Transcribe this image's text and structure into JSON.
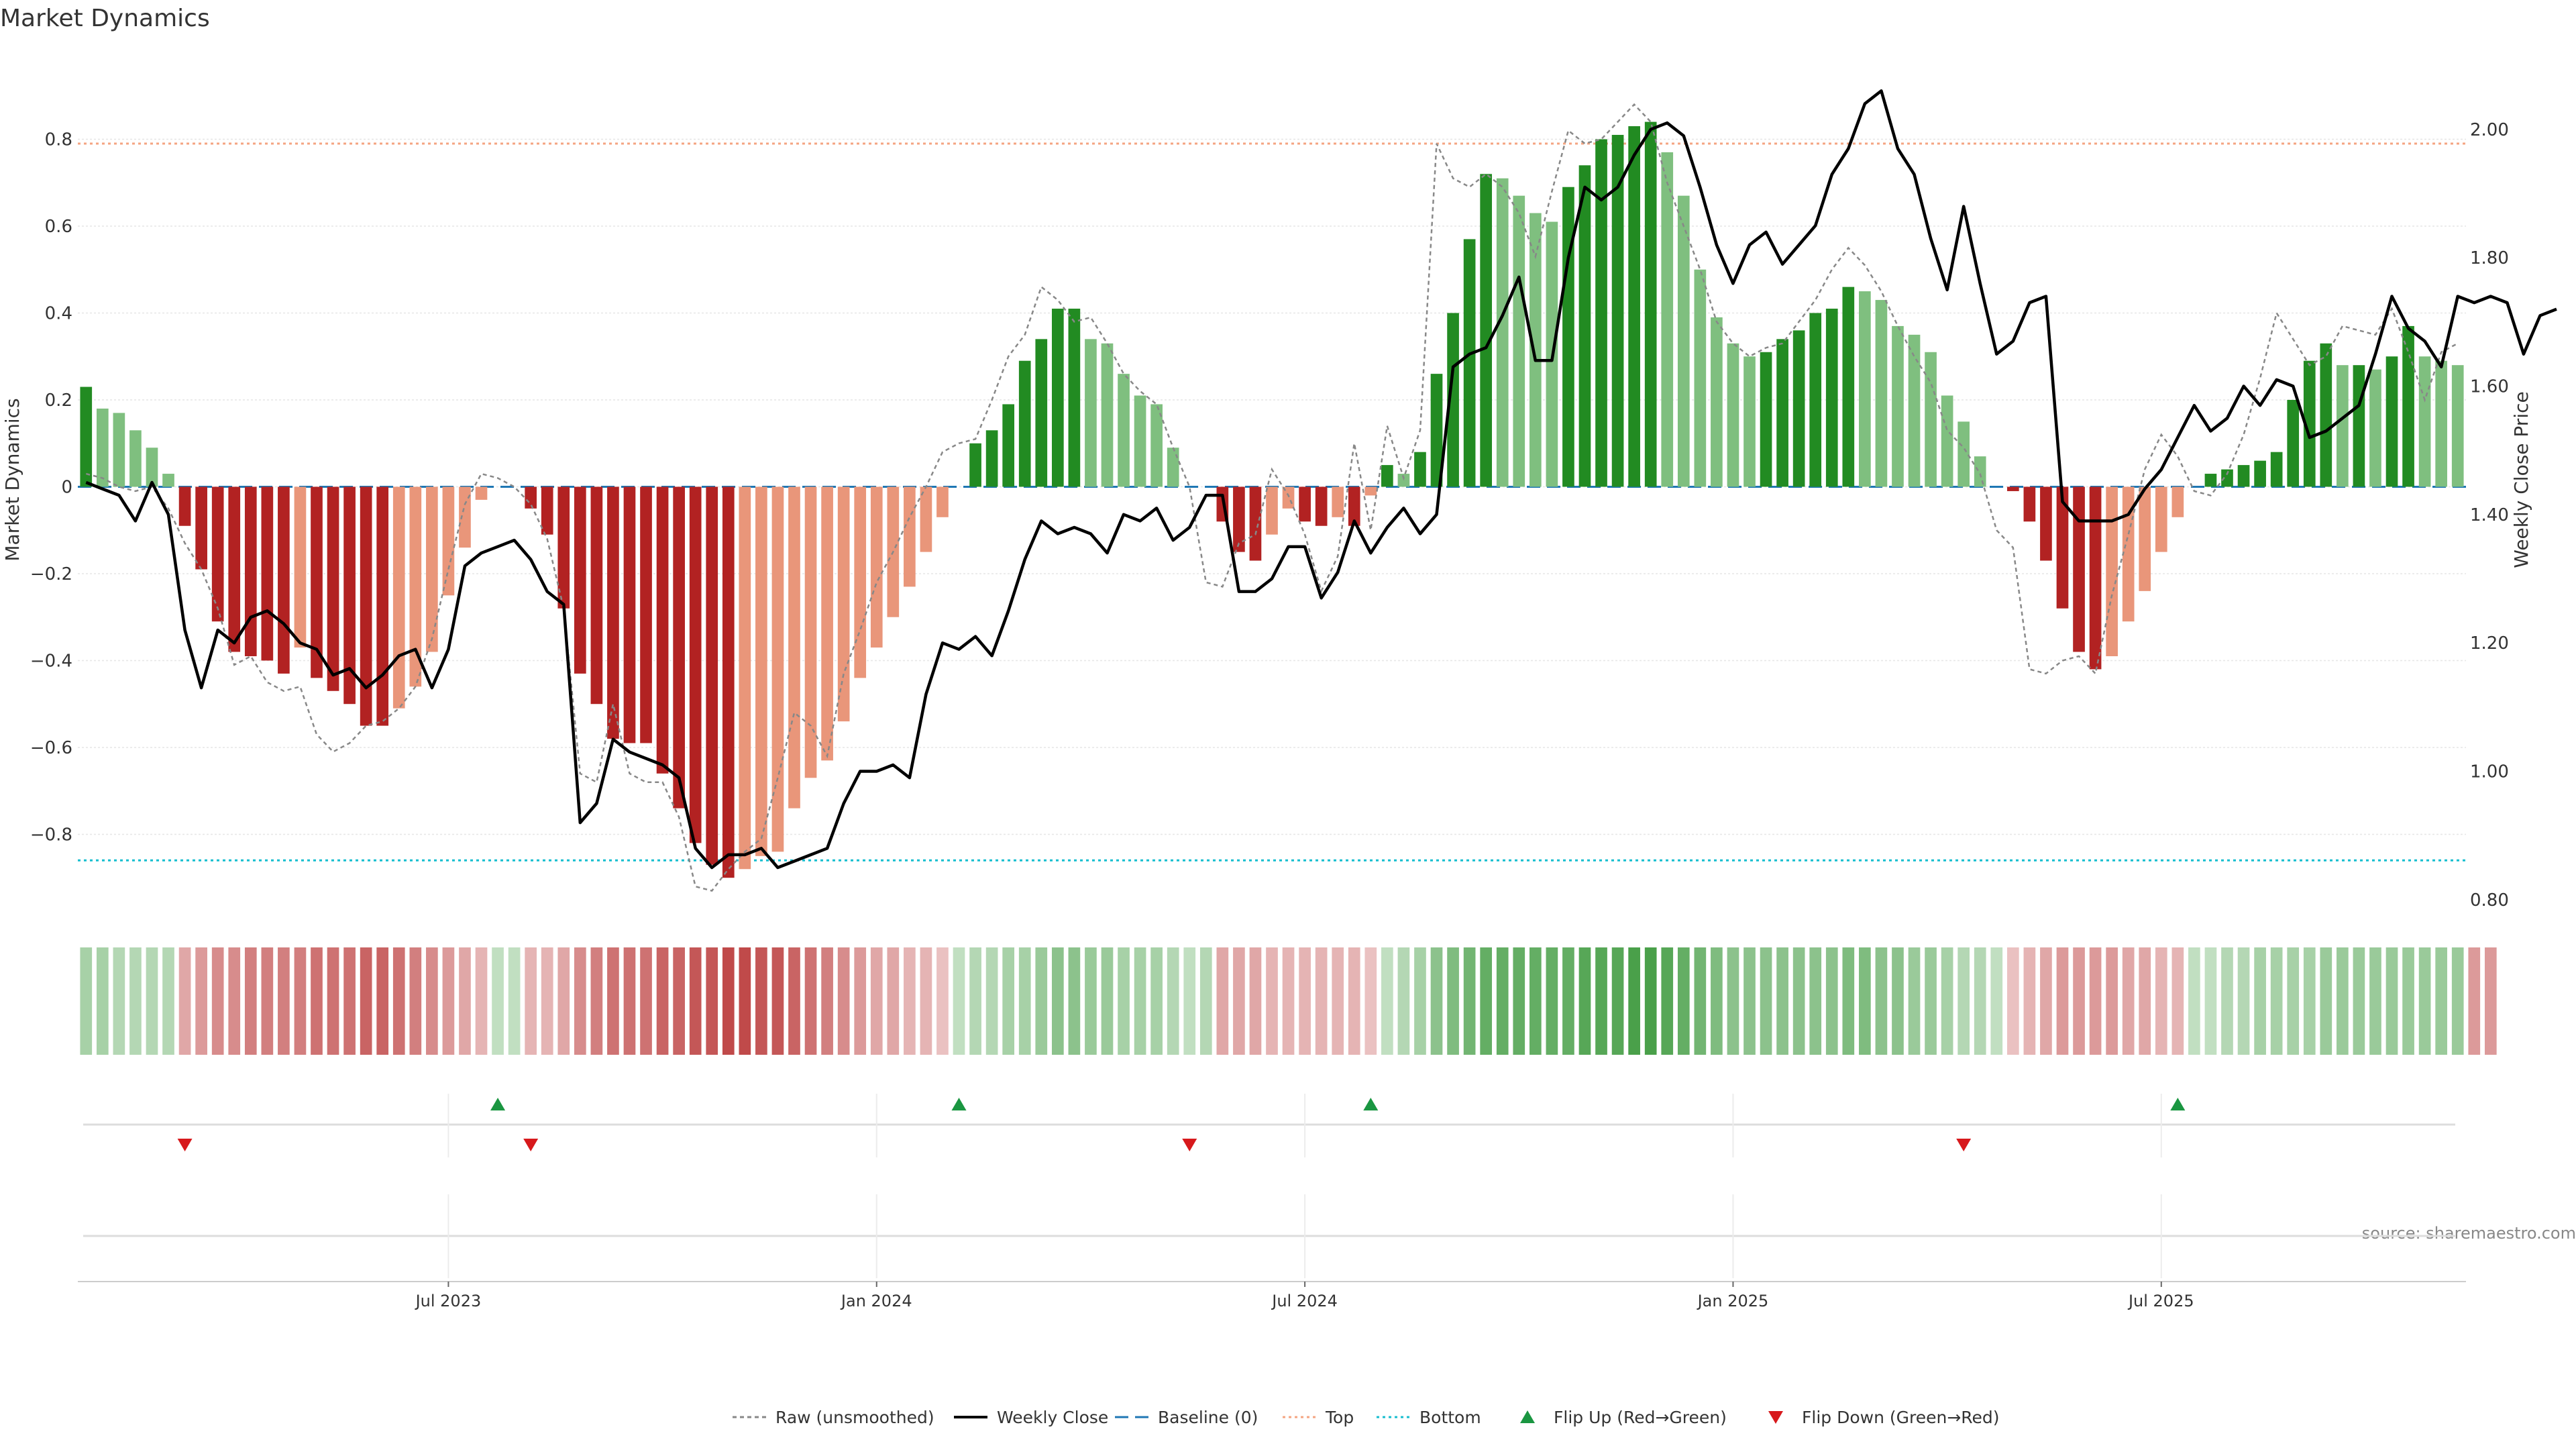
{
  "chart_data": {
    "type": "bar",
    "title": "Market Dynamics",
    "ylabel": "Market Dynamics",
    "y2label": "Weekly Close Price",
    "ylim": [
      -0.98,
      1.0
    ],
    "y2lim": [
      0.78,
      2.12
    ],
    "y_ticks": [
      -0.8,
      -0.6,
      -0.4,
      -0.2,
      0,
      0.2,
      0.4,
      0.6,
      0.8
    ],
    "y_tick_labels": [
      "−0.8",
      "−0.6",
      "−0.4",
      "−0.2",
      "0",
      "0.2",
      "0.4",
      "0.6",
      "0.8"
    ],
    "y2_ticks": [
      0.8,
      1.0,
      1.2,
      1.4,
      1.6,
      1.8,
      2.0
    ],
    "y2_tick_labels": [
      "0.80",
      "1.00",
      "1.20",
      "1.40",
      "1.60",
      "1.80",
      "2.00"
    ],
    "x_ticks": [
      {
        "label": "Jul 2023",
        "index": 22
      },
      {
        "label": "Jan 2024",
        "index": 48
      },
      {
        "label": "Jul 2024",
        "index": 74
      },
      {
        "label": "Jan 2025",
        "index": 100
      },
      {
        "label": "Jul 2025",
        "index": 126
      }
    ],
    "top_level": 0.79,
    "bottom_level": -0.86,
    "grid": true,
    "source": "source: sharemaestro.com",
    "colors": {
      "strong_green": "#228B22",
      "light_green": "#7fbf7f",
      "strong_red": "#b22222",
      "light_red": "#e9967a",
      "weekly_close": "#000000",
      "raw": "#888888",
      "baseline": "#1f77b4",
      "top": "#f4a582",
      "bottom": "#17becf",
      "flip_up": "#1a9641",
      "flip_down": "#d7191c"
    },
    "dynamics": [
      0.23,
      0.18,
      0.17,
      0.13,
      0.09,
      0.03,
      -0.09,
      -0.19,
      -0.31,
      -0.38,
      -0.39,
      -0.4,
      -0.43,
      -0.37,
      -0.44,
      -0.47,
      -0.5,
      -0.55,
      -0.55,
      -0.51,
      -0.46,
      -0.38,
      -0.25,
      -0.14,
      -0.03,
      0.0,
      0.0,
      -0.05,
      -0.11,
      -0.28,
      -0.43,
      -0.5,
      -0.58,
      -0.59,
      -0.59,
      -0.66,
      -0.74,
      -0.82,
      -0.87,
      -0.9,
      -0.88,
      -0.85,
      -0.84,
      -0.74,
      -0.67,
      -0.63,
      -0.54,
      -0.44,
      -0.37,
      -0.3,
      -0.23,
      -0.15,
      -0.07,
      0.0,
      0.1,
      0.13,
      0.19,
      0.29,
      0.34,
      0.41,
      0.41,
      0.34,
      0.33,
      0.26,
      0.21,
      0.19,
      0.09,
      0.0,
      0.0,
      -0.08,
      -0.15,
      -0.17,
      -0.11,
      -0.05,
      -0.08,
      -0.09,
      -0.07,
      -0.09,
      -0.02,
      0.05,
      0.03,
      0.08,
      0.26,
      0.4,
      0.57,
      0.72,
      0.71,
      0.67,
      0.63,
      0.61,
      0.69,
      0.74,
      0.8,
      0.81,
      0.83,
      0.84,
      0.77,
      0.67,
      0.5,
      0.39,
      0.33,
      0.3,
      0.31,
      0.34,
      0.36,
      0.4,
      0.41,
      0.46,
      0.45,
      0.43,
      0.37,
      0.35,
      0.31,
      0.21,
      0.15,
      0.07,
      0.0,
      -0.01,
      -0.08,
      -0.17,
      -0.28,
      -0.38,
      -0.42,
      -0.39,
      -0.31,
      -0.24,
      -0.15,
      -0.07,
      0.0,
      0.03,
      0.04,
      0.05,
      0.06,
      0.08,
      0.2,
      0.29,
      0.33,
      0.28,
      0.28,
      0.27,
      0.3,
      0.37,
      0.3,
      0.29,
      0.28
    ],
    "raw": [
      0.03,
      0.02,
      0.0,
      -0.01,
      0.0,
      -0.05,
      -0.13,
      -0.19,
      -0.28,
      -0.41,
      -0.39,
      -0.45,
      -0.47,
      -0.46,
      -0.57,
      -0.61,
      -0.59,
      -0.55,
      -0.54,
      -0.51,
      -0.46,
      -0.35,
      -0.19,
      -0.04,
      0.03,
      0.02,
      0.0,
      -0.04,
      -0.12,
      -0.28,
      -0.66,
      -0.68,
      -0.5,
      -0.66,
      -0.68,
      -0.68,
      -0.76,
      -0.92,
      -0.93,
      -0.88,
      -0.84,
      -0.81,
      -0.67,
      -0.52,
      -0.55,
      -0.62,
      -0.43,
      -0.33,
      -0.22,
      -0.15,
      -0.07,
      0.0,
      0.08,
      0.1,
      0.11,
      0.2,
      0.3,
      0.35,
      0.46,
      0.43,
      0.38,
      0.39,
      0.33,
      0.26,
      0.22,
      0.19,
      0.09,
      0.0,
      -0.22,
      -0.23,
      -0.13,
      -0.11,
      0.04,
      -0.02,
      -0.11,
      -0.24,
      -0.16,
      0.1,
      -0.1,
      0.14,
      0.02,
      0.13,
      0.79,
      0.71,
      0.69,
      0.72,
      0.69,
      0.63,
      0.53,
      0.68,
      0.82,
      0.79,
      0.8,
      0.84,
      0.88,
      0.84,
      0.7,
      0.6,
      0.5,
      0.38,
      0.33,
      0.3,
      0.32,
      0.33,
      0.38,
      0.43,
      0.5,
      0.55,
      0.51,
      0.45,
      0.37,
      0.3,
      0.24,
      0.13,
      0.09,
      0.03,
      -0.1,
      -0.14,
      -0.42,
      -0.43,
      -0.4,
      -0.39,
      -0.43,
      -0.25,
      -0.11,
      0.04,
      0.12,
      0.07,
      -0.01,
      -0.02,
      0.03,
      0.12,
      0.25,
      0.4,
      0.34,
      0.28,
      0.3,
      0.37,
      0.36,
      0.35,
      0.41,
      0.31,
      0.2,
      0.31,
      0.33
    ],
    "close": [
      1.45,
      1.44,
      1.43,
      1.39,
      1.45,
      1.4,
      1.22,
      1.13,
      1.22,
      1.2,
      1.24,
      1.25,
      1.23,
      1.2,
      1.19,
      1.15,
      1.16,
      1.13,
      1.15,
      1.18,
      1.19,
      1.13,
      1.19,
      1.32,
      1.34,
      1.35,
      1.36,
      1.33,
      1.28,
      1.26,
      0.92,
      0.95,
      1.05,
      1.03,
      1.02,
      1.01,
      0.99,
      0.88,
      0.85,
      0.87,
      0.87,
      0.88,
      0.85,
      0.86,
      0.87,
      0.88,
      0.95,
      1.0,
      1.0,
      1.01,
      0.99,
      1.12,
      1.2,
      1.19,
      1.21,
      1.18,
      1.25,
      1.33,
      1.39,
      1.37,
      1.38,
      1.37,
      1.34,
      1.4,
      1.39,
      1.41,
      1.36,
      1.38,
      1.43,
      1.43,
      1.28,
      1.28,
      1.3,
      1.35,
      1.35,
      1.27,
      1.31,
      1.39,
      1.34,
      1.38,
      1.41,
      1.37,
      1.4,
      1.63,
      1.65,
      1.66,
      1.71,
      1.77,
      1.64,
      1.64,
      1.8,
      1.91,
      1.89,
      1.91,
      1.96,
      2.0,
      2.01,
      1.99,
      1.91,
      1.82,
      1.76,
      1.82,
      1.84,
      1.79,
      1.82,
      1.85,
      1.93,
      1.97,
      2.04,
      2.06,
      1.97,
      1.93,
      1.83,
      1.75,
      1.88,
      1.76,
      1.65,
      1.67,
      1.73,
      1.74,
      1.42,
      1.39,
      1.39,
      1.39,
      1.4,
      1.44,
      1.47,
      1.52,
      1.57,
      1.53,
      1.55,
      1.6,
      1.57,
      1.61,
      1.6,
      1.52,
      1.53,
      1.55,
      1.57,
      1.65,
      1.74,
      1.69,
      1.67,
      1.63,
      1.74,
      1.73,
      1.74,
      1.73,
      1.65,
      1.71,
      1.72
    ],
    "regime_heat": [
      0.3,
      0.3,
      0.2,
      0.2,
      0.2,
      0.2,
      0.3,
      0.4,
      0.5,
      0.5,
      0.6,
      0.6,
      0.6,
      0.6,
      0.7,
      0.7,
      0.7,
      0.8,
      0.8,
      0.7,
      0.6,
      0.5,
      0.4,
      0.3,
      0.2,
      0.1,
      0.1,
      0.2,
      0.2,
      0.3,
      0.5,
      0.6,
      0.7,
      0.7,
      0.7,
      0.8,
      0.8,
      0.9,
      0.9,
      1.0,
      1.0,
      0.9,
      0.9,
      0.8,
      0.7,
      0.6,
      0.5,
      0.4,
      0.3,
      0.3,
      0.2,
      0.2,
      0.1,
      0.1,
      0.2,
      0.2,
      0.3,
      0.3,
      0.4,
      0.5,
      0.5,
      0.4,
      0.4,
      0.3,
      0.3,
      0.3,
      0.2,
      0.1,
      0.2,
      0.3,
      0.3,
      0.3,
      0.2,
      0.2,
      0.2,
      0.2,
      0.2,
      0.2,
      0.1,
      0.1,
      0.2,
      0.3,
      0.5,
      0.6,
      0.7,
      0.8,
      0.8,
      0.8,
      0.8,
      0.8,
      0.8,
      0.9,
      0.9,
      0.9,
      1.0,
      1.0,
      0.9,
      0.8,
      0.7,
      0.6,
      0.5,
      0.5,
      0.5,
      0.5,
      0.5,
      0.5,
      0.5,
      0.6,
      0.6,
      0.5,
      0.5,
      0.4,
      0.4,
      0.3,
      0.2,
      0.2,
      0.1,
      0.1,
      0.2,
      0.3,
      0.4,
      0.4,
      0.4,
      0.4,
      0.3,
      0.3,
      0.2,
      0.2,
      0.1,
      0.1,
      0.2,
      0.2,
      0.3,
      0.3,
      0.3,
      0.3,
      0.4,
      0.4,
      0.4,
      0.4,
      0.4,
      0.4,
      0.4,
      0.4,
      0.4,
      0.4,
      0.4
    ],
    "flip_up": [
      25,
      53,
      78,
      127
    ],
    "flip_down": [
      6,
      27,
      67,
      114
    ],
    "legend_position": "bottom-center",
    "legend": [
      {
        "key": "raw",
        "label": "Raw (unsmoothed)"
      },
      {
        "key": "close",
        "label": "Weekly Close"
      },
      {
        "key": "baseline",
        "label": "Baseline (0)"
      },
      {
        "key": "top",
        "label": "Top"
      },
      {
        "key": "bottom",
        "label": "Bottom"
      },
      {
        "key": "flip_up",
        "label": "Flip Up (Red→Green)"
      },
      {
        "key": "flip_down",
        "label": "Flip Down (Green→Red)"
      }
    ]
  }
}
